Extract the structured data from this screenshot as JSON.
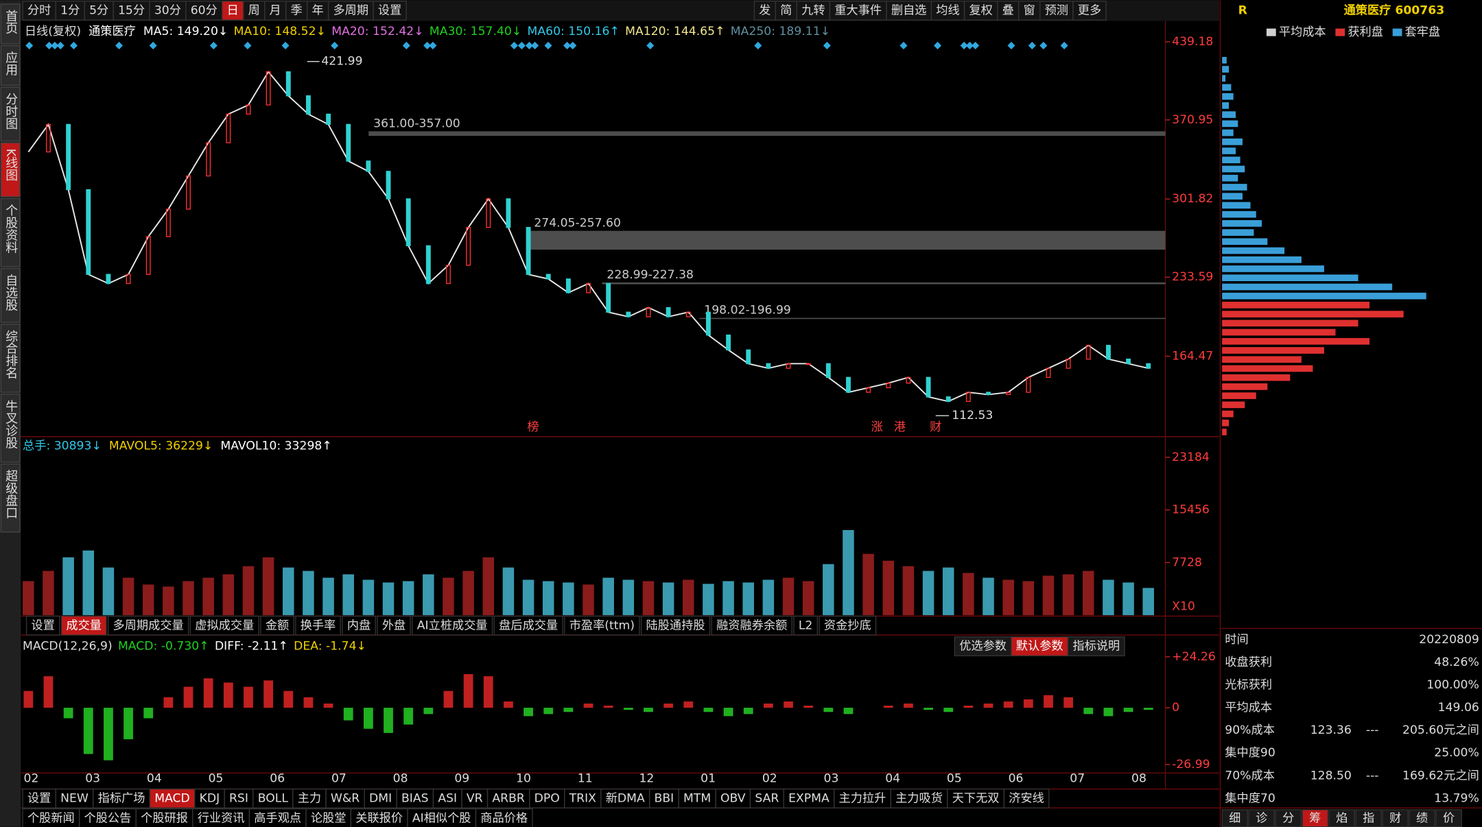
{
  "toolbar": {
    "periods": [
      "分时",
      "1分",
      "5分",
      "15分",
      "30分",
      "60分",
      "日",
      "周",
      "月",
      "季",
      "年",
      "多周期",
      "设置"
    ],
    "tools": [
      "发",
      "简",
      "九转",
      "重大事件",
      "删自选",
      "均线",
      "复权",
      "叠",
      "窗",
      "预测",
      "更多"
    ]
  },
  "sidebar": [
    "首页",
    "应用",
    "分时图",
    "K线图",
    "个股资料",
    "自选股",
    "综合排名",
    "牛叉诊股",
    "超级盘口"
  ],
  "chart_data": {
    "type": "line",
    "period": "日线(复权)",
    "stock": "通策医疗",
    "ma": [
      {
        "text": "MA5: 149.20↓",
        "color": "#ffffff"
      },
      {
        "text": "MA10: 148.52↓",
        "color": "#f0d000"
      },
      {
        "text": "MA20: 152.42↓",
        "color": "#e070e0"
      },
      {
        "text": "MA30: 157.40↓",
        "color": "#20d020"
      },
      {
        "text": "MA60: 150.16↑",
        "color": "#30c8e8"
      },
      {
        "text": "MA120: 144.65↑",
        "color": "#f0e68c"
      },
      {
        "text": "MA250: 189.11↓",
        "color": "#5f8fa0"
      }
    ],
    "ylim": [
      95.9,
      442.5
    ],
    "yticks": [
      439.18,
      370.95,
      301.82,
      233.59,
      164.47
    ],
    "series": [
      {
        "name": "收盘",
        "color": "#e8e8e8",
        "values": [
          343,
          367,
          310,
          236,
          228,
          236,
          269,
          293,
          322,
          351,
          376,
          384,
          413,
          392,
          376,
          367,
          335,
          326,
          302,
          261,
          228,
          244,
          277,
          302,
          277,
          236,
          232,
          220,
          228,
          203,
          199,
          207,
          199,
          203,
          183,
          170,
          158,
          154,
          158,
          158,
          146,
          133,
          137,
          141,
          146,
          129,
          125,
          133,
          131,
          133,
          146,
          154,
          162,
          174,
          162,
          158,
          154
        ]
      }
    ],
    "zones": [
      {
        "label": "361.00-357.00",
        "low": 357,
        "high": 361
      },
      {
        "label": "274.05-257.60",
        "low": 257.6,
        "high": 274.05
      },
      {
        "label": "228.99-227.38",
        "low": 227.38,
        "high": 228.99
      },
      {
        "label": "198.02-196.99",
        "low": 196.99,
        "high": 198.02
      }
    ],
    "high": {
      "label": "421.99",
      "value": 421.99
    },
    "low": {
      "label": "112.53",
      "value": 112.53
    },
    "flags": [
      "榜",
      "涨",
      "港",
      "财"
    ],
    "months": [
      "02",
      "03",
      "04",
      "05",
      "06",
      "07",
      "08",
      "09",
      "10",
      "11",
      "12",
      "01",
      "02",
      "03",
      "04",
      "05",
      "06",
      "07",
      "08"
    ]
  },
  "volume": {
    "legend": [
      {
        "text": "总手: 30893↓",
        "color": "#30c8e8"
      },
      {
        "text": "MAVOL5: 36229↓",
        "color": "#f0d000"
      },
      {
        "text": "MAVOL10: 33298↑",
        "color": "#ffffff"
      }
    ],
    "ylim": [
      0,
      25800
    ],
    "yticks": [
      23184,
      15456,
      7728
    ],
    "unit": "X10",
    "values": [
      5000,
      6500,
      8500,
      9500,
      7000,
      5500,
      4500,
      4200,
      5000,
      5500,
      6000,
      7200,
      8500,
      7000,
      6500,
      5500,
      6000,
      5200,
      4800,
      5000,
      6000,
      5500,
      6500,
      8500,
      7000,
      5200,
      5000,
      4800,
      4500,
      5500,
      5200,
      5000,
      4800,
      5200,
      4600,
      5000,
      4800,
      5200,
      5500,
      5000,
      7500,
      12500,
      9000,
      8000,
      7200,
      6500,
      7000,
      6200,
      5500,
      5200,
      5000,
      5800,
      6000,
      6500,
      5200,
      4800,
      4000
    ]
  },
  "tabs": [
    "设置",
    "成交量",
    "多周期成交量",
    "虚拟成交量",
    "金额",
    "换手率",
    "内盘",
    "外盘",
    "AI立桩成交量",
    "盘后成交量",
    "市盈率(ttm)",
    "陆股通持股",
    "融资融券余额",
    "L2",
    "资金抄底"
  ],
  "param_buttons": [
    "优选参数",
    "默认参数",
    "指标说明"
  ],
  "macd": {
    "legend": [
      {
        "text": "MACD(12,26,9)",
        "color": "#dddddd"
      },
      {
        "text": "MACD: -0.730↑",
        "color": "#20d020"
      },
      {
        "text": "DIFF: -2.11↑",
        "color": "#ffffff"
      },
      {
        "text": "DEA: -1.74↓",
        "color": "#f0d000"
      }
    ],
    "ylim": [
      -31,
      33.2
    ],
    "yticks": [
      {
        "value": 24.26,
        "label": "+24.26"
      },
      0,
      -26.99
    ],
    "values": [
      8,
      15,
      -5,
      -22,
      -25,
      -15,
      -5,
      5,
      10,
      14,
      12,
      10,
      13,
      8,
      5,
      2,
      -6,
      -10,
      -12,
      -8,
      -3,
      8,
      16,
      15,
      3,
      -4,
      -3,
      -2,
      2,
      1,
      -1,
      -2,
      2,
      3,
      -2,
      -4,
      -3,
      2,
      3,
      1,
      -2,
      -3,
      0,
      1,
      2,
      -1,
      -2,
      1,
      2,
      3,
      4,
      6,
      5,
      -3,
      -4,
      -2,
      -1
    ]
  },
  "indicator_tabs": [
    "设置",
    "NEW",
    "指标广场",
    "MACD",
    "KDJ",
    "RSI",
    "BOLL",
    "主力",
    "W&R",
    "DMI",
    "BIAS",
    "ASI",
    "VR",
    "ARBR",
    "DPO",
    "TRIX",
    "新DMA",
    "BBI",
    "MTM",
    "OBV",
    "SAR",
    "EXPMA",
    "主力拉升",
    "主力吸货",
    "天下无双",
    "济安线"
  ],
  "bottom_bar": [
    "个股新闻",
    "个股公告",
    "个股研报",
    "行业资讯",
    "高手观点",
    "论股堂",
    "关联报价",
    "AI相似个股",
    "商品价格"
  ],
  "side_panel": {
    "mark": "R",
    "title": "通策医疗 600763",
    "chip_chart": {
      "series": [
        {
          "name": "平均成本",
          "color": "#d0d0d0"
        },
        {
          "name": "获利盘",
          "color": "#e03030",
          "values": [
            130,
            160,
            120,
            100,
            130,
            90,
            70,
            80,
            60,
            40,
            30,
            20,
            10,
            6,
            4
          ]
        },
        {
          "name": "套牢盘",
          "color": "#3a9fd8",
          "values": [
            4,
            6,
            3,
            8,
            10,
            6,
            12,
            14,
            10,
            18,
            12,
            16,
            20,
            14,
            22,
            18,
            25,
            30,
            35,
            28,
            40,
            55,
            70,
            90,
            120,
            150,
            180
          ]
        }
      ]
    },
    "stats": [
      [
        "时间",
        "20220809"
      ],
      [
        "收盘获利",
        "48.26%"
      ],
      [
        "光标获利",
        "100.00%"
      ],
      [
        "平均成本",
        "149.06"
      ],
      [
        "90%成本",
        "123.36",
        "---",
        "205.60元之间"
      ],
      [
        "集中度90",
        "25.00%"
      ],
      [
        "70%成本",
        "128.50",
        "---",
        "169.62元之间"
      ],
      [
        "集中度70",
        "13.79%"
      ]
    ],
    "tabs": [
      "细",
      "诊",
      "分",
      "筹",
      "焰",
      "指",
      "财",
      "绩",
      "价"
    ]
  }
}
